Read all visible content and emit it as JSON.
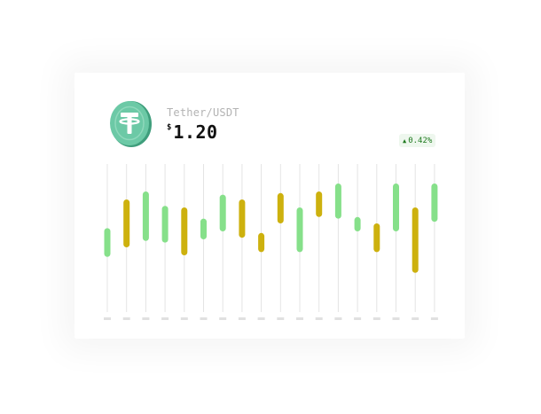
{
  "token": {
    "pair": "Tether/USDT",
    "currency_symbol": "$",
    "price": "1.20",
    "icon": "tether-logo"
  },
  "change": {
    "value": "0.42%",
    "icon": "arrow-up-icon",
    "color": "#1f7a1f",
    "bg": "#eef7ee"
  },
  "colors": {
    "up": "#86e08a",
    "down": "#cdb10e",
    "grid": "#e4e4e4",
    "tick": "#e0e0e0",
    "logo": "#6cc9a6"
  },
  "chart_data": {
    "type": "candlestick",
    "series": [
      {
        "low": 0.29,
        "high": 0.47,
        "direction": "up"
      },
      {
        "low": 0.35,
        "high": 0.65,
        "direction": "down"
      },
      {
        "low": 0.39,
        "high": 0.7,
        "direction": "up"
      },
      {
        "low": 0.38,
        "high": 0.61,
        "direction": "up"
      },
      {
        "low": 0.3,
        "high": 0.6,
        "direction": "down"
      },
      {
        "low": 0.4,
        "high": 0.53,
        "direction": "up"
      },
      {
        "low": 0.45,
        "high": 0.68,
        "direction": "up"
      },
      {
        "low": 0.41,
        "high": 0.65,
        "direction": "down"
      },
      {
        "low": 0.32,
        "high": 0.44,
        "direction": "down"
      },
      {
        "low": 0.5,
        "high": 0.69,
        "direction": "down"
      },
      {
        "low": 0.32,
        "high": 0.6,
        "direction": "up"
      },
      {
        "low": 0.54,
        "high": 0.7,
        "direction": "down"
      },
      {
        "low": 0.53,
        "high": 0.75,
        "direction": "up"
      },
      {
        "low": 0.45,
        "high": 0.54,
        "direction": "up"
      },
      {
        "low": 0.32,
        "high": 0.5,
        "direction": "down"
      },
      {
        "low": 0.45,
        "high": 0.75,
        "direction": "up"
      },
      {
        "low": 0.19,
        "high": 0.6,
        "direction": "down"
      },
      {
        "low": 0.51,
        "high": 0.75,
        "direction": "up"
      }
    ]
  }
}
